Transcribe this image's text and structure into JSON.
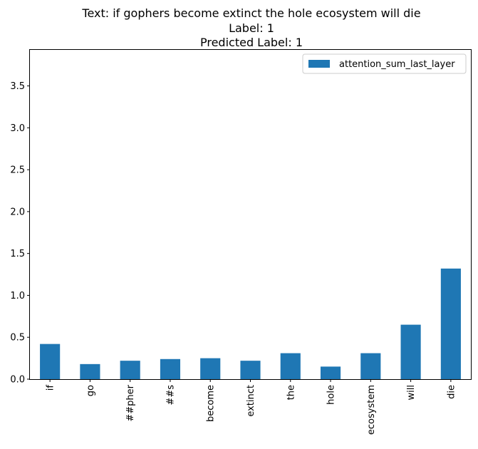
{
  "chart_data": {
    "type": "bar",
    "title_lines": [
      "Text: if gophers become extinct the hole ecosystem will die",
      "Label: 1",
      "Predicted Label: 1"
    ],
    "xlabel": "",
    "ylabel": "",
    "categories": [
      "if",
      "go",
      "##pher",
      "##s",
      "become",
      "extinct",
      "the",
      "hole",
      "ecosystem",
      "will",
      "die"
    ],
    "series": [
      {
        "name": "attention_sum_last_layer",
        "color": "#1f77b4",
        "values": [
          0.42,
          0.18,
          0.22,
          0.24,
          0.25,
          0.22,
          0.31,
          0.15,
          0.31,
          0.65,
          1.32
        ]
      }
    ],
    "ylim": [
      0,
      3.93
    ],
    "yticks": [
      0.0,
      0.5,
      1.0,
      1.5,
      2.0,
      2.5,
      3.0,
      3.5
    ],
    "ytick_labels": [
      "0.0",
      "0.5",
      "1.0",
      "1.5",
      "2.0",
      "2.5",
      "3.0",
      "3.5"
    ],
    "grid": false,
    "legend_position": "top-right"
  }
}
